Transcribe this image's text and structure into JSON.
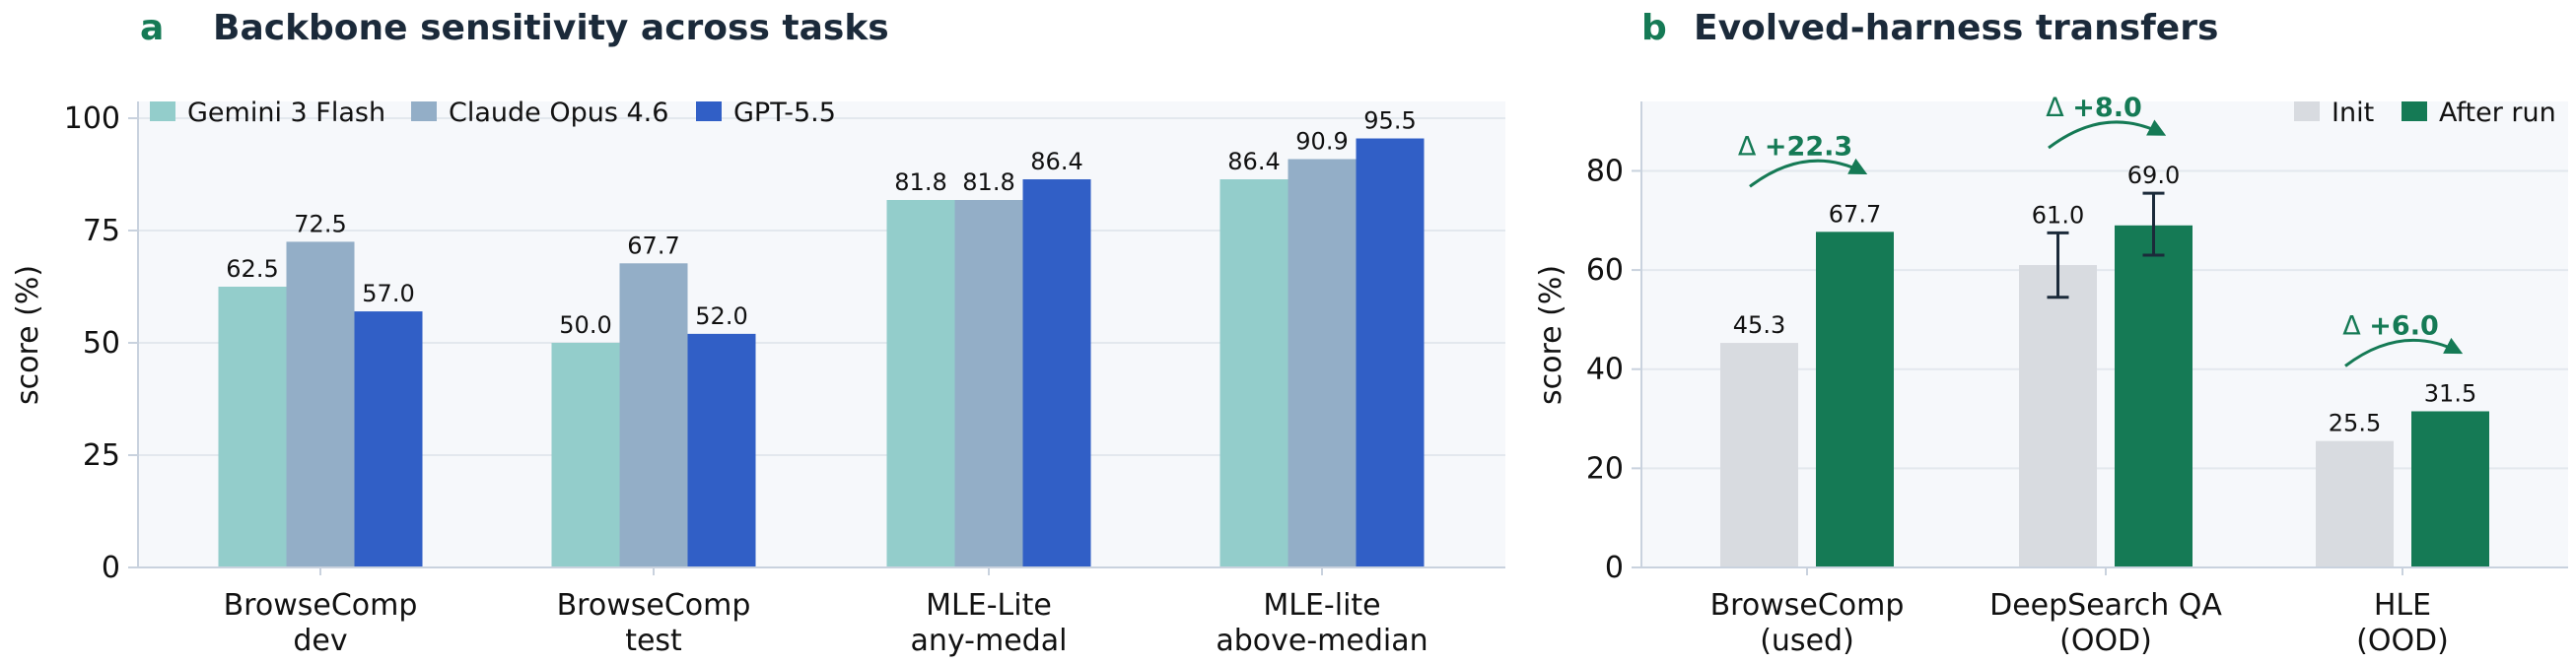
{
  "colors": {
    "accent_letter": "#157a55",
    "title": "#1b2a3a",
    "plot_bg": "#f6f8fb",
    "grid": "#e3e8ee",
    "axis": "#c9d2de",
    "text": "#111111",
    "delta": "#157a55"
  },
  "chart_data": [
    {
      "panel_letter": "a",
      "title": "Backbone sensitivity across tasks",
      "type": "bar",
      "ylabel": "score (%)",
      "ylim": [
        0,
        100
      ],
      "yticks": [
        "0",
        "25",
        "50",
        "75",
        "100"
      ],
      "grid": true,
      "legend_position": "top-left",
      "categories": [
        [
          "BrowseComp",
          "dev"
        ],
        [
          "BrowseComp",
          "test"
        ],
        [
          "MLE-Lite",
          "any-medal"
        ],
        [
          "MLE-lite",
          "above-median"
        ]
      ],
      "series": [
        {
          "name": "Gemini 3 Flash",
          "color": "#93cdcb",
          "values": [
            62.5,
            50.0,
            81.8,
            86.4
          ],
          "labels": [
            "62.5",
            "50.0",
            "81.8",
            "86.4"
          ]
        },
        {
          "name": "Claude Opus 4.6",
          "color": "#93aec7",
          "values": [
            72.5,
            67.7,
            81.8,
            90.9
          ],
          "labels": [
            "72.5",
            "67.7",
            "81.8",
            "90.9"
          ]
        },
        {
          "name": "GPT-5.5",
          "color": "#315fc6",
          "values": [
            57.0,
            52.0,
            86.4,
            95.5
          ],
          "labels": [
            "57.0",
            "52.0",
            "86.4",
            "95.5"
          ]
        }
      ]
    },
    {
      "panel_letter": "b",
      "title": "Evolved-harness transfers",
      "type": "bar",
      "ylabel": "score (%)",
      "ylim": [
        0,
        94
      ],
      "yticks": [
        "0",
        "20",
        "40",
        "60",
        "80"
      ],
      "grid": true,
      "legend_position": "top-right",
      "categories": [
        [
          "BrowseComp",
          "(used)"
        ],
        [
          "DeepSearch QA",
          "(OOD)"
        ],
        [
          "HLE",
          "(OOD)"
        ]
      ],
      "series": [
        {
          "name": "Init",
          "color": "#d8dbe0",
          "values": [
            45.3,
            61.0,
            25.5
          ],
          "labels": [
            "45.3",
            "61.0",
            "25.5"
          ],
          "error": [
            null,
            [
              54.5,
              67.5
            ],
            null
          ]
        },
        {
          "name": "After run",
          "color": "#157a55",
          "values": [
            67.7,
            69.0,
            31.5
          ],
          "labels": [
            "67.7",
            "69.0",
            "31.5"
          ],
          "error": [
            null,
            [
              63.0,
              75.5
            ],
            null
          ]
        }
      ],
      "annotations": [
        "Δ +22.3",
        "Δ +8.0",
        "Δ +6.0"
      ],
      "annotation_parts": [
        {
          "prefix": "Δ ",
          "value": "+22.3"
        },
        {
          "prefix": "Δ ",
          "value": "+8.0"
        },
        {
          "prefix": "Δ ",
          "value": "+6.0"
        }
      ]
    }
  ]
}
